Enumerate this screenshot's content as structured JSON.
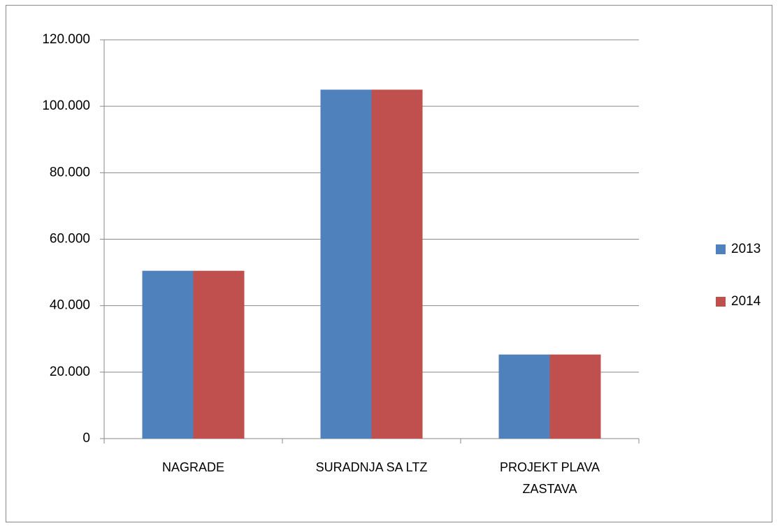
{
  "chart_data": {
    "type": "bar",
    "categories": [
      "NAGRADE",
      "SURADNJA SA LTZ",
      "PROJEKT PLAVA ZASTAVA"
    ],
    "series": [
      {
        "name": "2013",
        "color": "#4f81bd",
        "values": [
          50500,
          105000,
          25300
        ]
      },
      {
        "name": "2014",
        "color": "#c0504d",
        "values": [
          50500,
          105000,
          25300
        ]
      }
    ],
    "ylim": [
      0,
      120000
    ],
    "yticks": [
      0,
      {
        "value": 20000,
        "label": "20.000"
      },
      {
        "value": 40000,
        "label": "40.000"
      },
      {
        "value": 60000,
        "label": "60.000"
      },
      {
        "value": 80000,
        "label": "80.000"
      },
      {
        "value": 100000,
        "label": "100.000"
      },
      {
        "value": 120000,
        "label": "120.000"
      }
    ],
    "grid": true,
    "legend": "right"
  }
}
